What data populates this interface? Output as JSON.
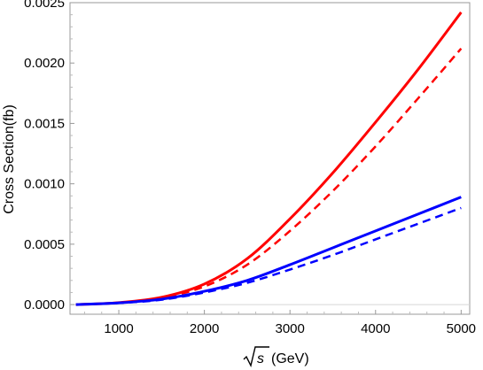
{
  "chart_data": {
    "type": "line",
    "title": "",
    "xlabel": "(GeV)",
    "xlabel_radicand": "s",
    "ylabel": "Cross Section(fb)",
    "xlim": [
      430,
      5100
    ],
    "ylim": [
      -8e-05,
      0.0025
    ],
    "x_ticks": [
      1000,
      2000,
      3000,
      4000,
      5000
    ],
    "y_ticks": [
      0,
      0.0005,
      0.001,
      0.0015,
      0.002,
      0.0025
    ],
    "y_tick_labels": [
      "0.0000",
      "0.0005",
      "0.0010",
      "0.0015",
      "0.0020",
      "0.0025"
    ],
    "grid": false,
    "legend": "none",
    "x": [
      500,
      1000,
      1500,
      2000,
      2500,
      3000,
      3500,
      4000,
      4500,
      5000
    ],
    "series": [
      {
        "color": "#ff0000",
        "style": "solid",
        "values": [
          0,
          1.6e-05,
          6e-05,
          0.00017,
          0.00038,
          0.00071,
          0.00109,
          0.00151,
          0.00195,
          0.00242
        ]
      },
      {
        "color": "#ff0000",
        "style": "dashed",
        "values": [
          0,
          1.5e-05,
          5.5e-05,
          0.00015,
          0.00033,
          0.00061,
          0.00094,
          0.00131,
          0.00171,
          0.00212
        ]
      },
      {
        "color": "#0000ff",
        "style": "solid",
        "values": [
          0,
          1.4e-05,
          4.5e-05,
          0.00011,
          0.0002,
          0.00033,
          0.00047,
          0.00061,
          0.00075,
          0.00089
        ]
      },
      {
        "color": "#0000ff",
        "style": "dashed",
        "values": [
          0,
          1.3e-05,
          4e-05,
          0.0001,
          0.00018,
          0.00029,
          0.00041,
          0.00054,
          0.00067,
          0.0008
        ]
      }
    ]
  }
}
